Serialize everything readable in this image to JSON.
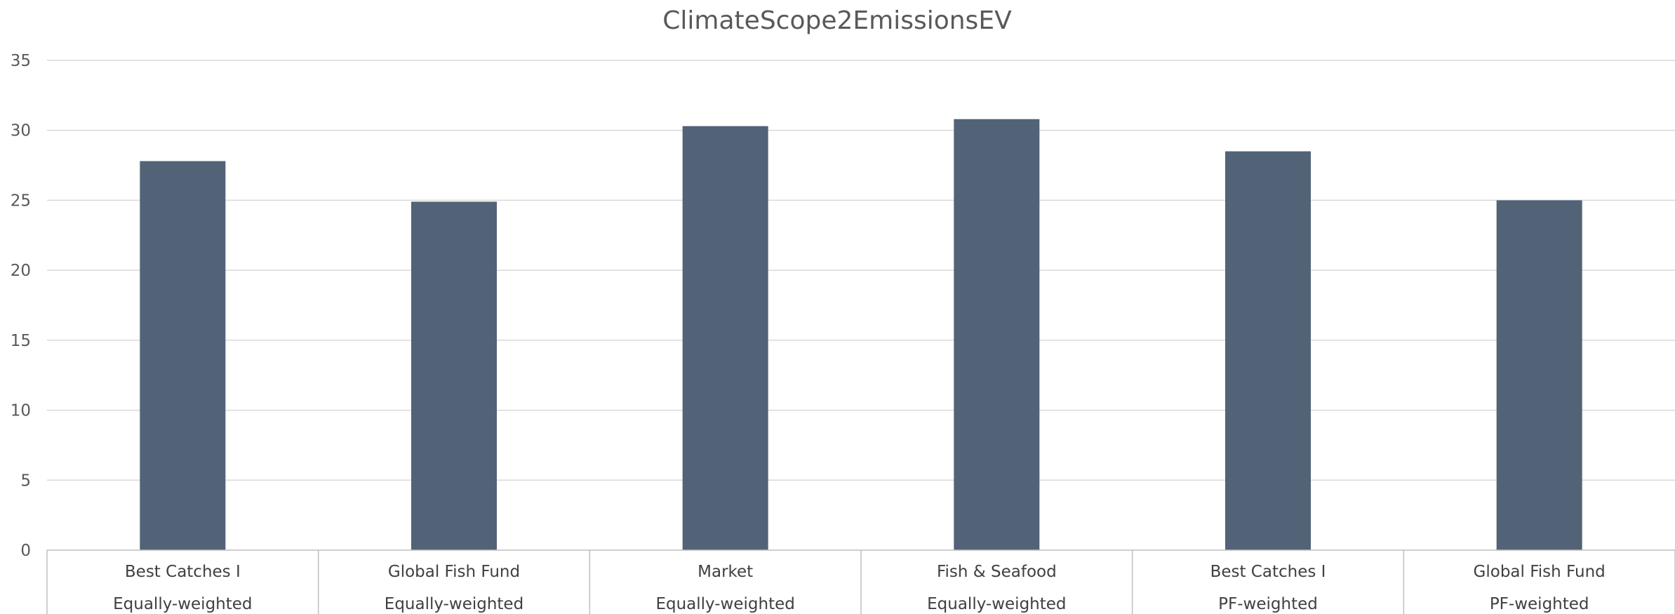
{
  "chart_data": {
    "type": "bar",
    "title": "ClimateScope2EmissionsEV",
    "xlabel": "",
    "ylabel": "",
    "ylim": [
      0,
      35
    ],
    "yticks": [
      0,
      5,
      10,
      15,
      20,
      25,
      30,
      35
    ],
    "grid": true,
    "legend": "none",
    "categories": [
      {
        "name": "Best Catches I",
        "group": "Equally-weighted"
      },
      {
        "name": "Global Fish Fund",
        "group": "Equally-weighted"
      },
      {
        "name": "Market",
        "group": "Equally-weighted"
      },
      {
        "name": "Fish & Seafood",
        "group": "Equally-weighted"
      },
      {
        "name": "Best Catches I",
        "group": "PF-weighted"
      },
      {
        "name": "Global Fish Fund",
        "group": "PF-weighted"
      }
    ],
    "values": [
      27.8,
      24.9,
      30.3,
      30.8,
      28.5,
      25.0
    ],
    "colors": {
      "bar": "#526378",
      "grid": "#d9d9d9",
      "axis": "#bfbfbf"
    }
  }
}
